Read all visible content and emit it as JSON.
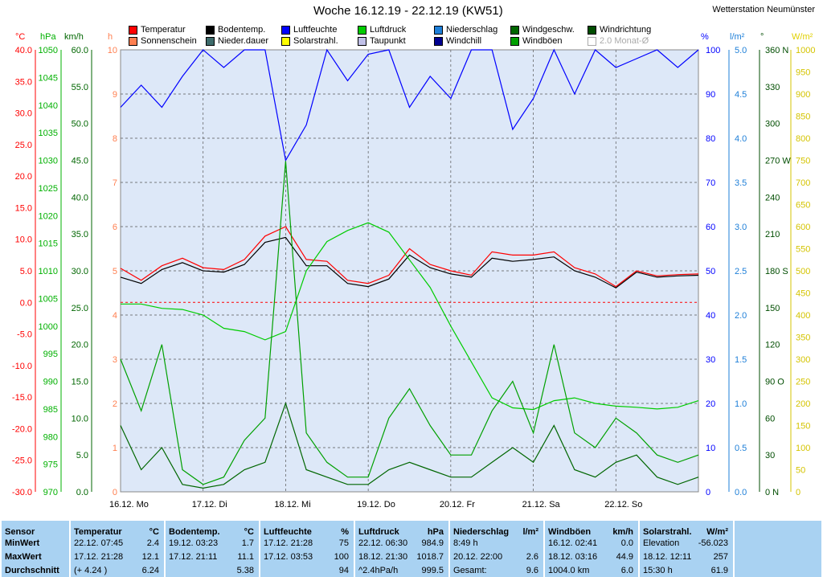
{
  "header": {
    "title": "Woche 16.12.19 - 22.12.19 (KW51)",
    "station": "Wetterstation Neumünster"
  },
  "legend": [
    {
      "label": "Temperatur",
      "color": "#ff0000"
    },
    {
      "label": "Bodentemp.",
      "color": "#000000"
    },
    {
      "label": "Luftfeuchte",
      "color": "#0000ff"
    },
    {
      "label": "Luftdruck",
      "color": "#00cc00"
    },
    {
      "label": "Niederschlag",
      "color": "#1e7fd8"
    },
    {
      "label": "Windgeschw.",
      "color": "#006600"
    },
    {
      "label": "Windrichtung",
      "color": "#004d00"
    },
    {
      "label": "Sonnenschein",
      "color": "#ff7f50"
    },
    {
      "label": "Nieder.dauer",
      "color": "#3d6b6b"
    },
    {
      "label": "Solarstrahl.",
      "color": "#ffff00"
    },
    {
      "label": "Taupunkt",
      "color": "#c0c0e8"
    },
    {
      "label": "Windchill",
      "color": "#000090"
    },
    {
      "label": "Windböen",
      "color": "#00a000"
    },
    {
      "label": "2.0 Monat-Ø",
      "color": "#ffffff"
    }
  ],
  "axis_units": {
    "celsius": "°C",
    "hpa": "hPa",
    "kmh": "km/h",
    "hours": "h",
    "percent": "%",
    "lm2": "l/m²",
    "deg": "°",
    "wm2": "W/m²"
  },
  "chart_data": {
    "type": "line",
    "title": "Woche 16.12.19 - 22.12.19 (KW51)",
    "x_labels": [
      "16.12.  Mo",
      "17.12.  Di",
      "18.12.  Mi",
      "19.12.  Do",
      "20.12.  Fr",
      "21.12.  Sa",
      "22.12.  So"
    ],
    "x_range_hours": [
      0,
      168
    ],
    "axes": {
      "celsius": {
        "range": [
          -30,
          40
        ],
        "ticks": [
          "40.0",
          "35.0",
          "30.0",
          "25.0",
          "20.0",
          "15.0",
          "10.0",
          "5.0",
          "0.0",
          "-5.0",
          "-10.0",
          "-15.0",
          "-20.0",
          "-25.0",
          "-30.0"
        ]
      },
      "hpa": {
        "range": [
          970,
          1050
        ],
        "ticks": [
          "1050",
          "1045",
          "1040",
          "1035",
          "1030",
          "1025",
          "1020",
          "1015",
          "1010",
          "1005",
          "1000",
          "995",
          "990",
          "985",
          "980",
          "975",
          "970"
        ]
      },
      "kmh": {
        "range": [
          0,
          60
        ],
        "ticks": [
          "60.0",
          "55.0",
          "50.0",
          "45.0",
          "40.0",
          "35.0",
          "30.0",
          "25.0",
          "20.0",
          "15.0",
          "10.0",
          "5.0",
          "0.0"
        ]
      },
      "hours": {
        "range": [
          0,
          10
        ],
        "ticks": [
          "10",
          "9",
          "8",
          "7",
          "6",
          "5",
          "4",
          "3",
          "2",
          "1",
          "0"
        ]
      },
      "percent": {
        "range": [
          0,
          100
        ],
        "ticks": [
          "100",
          "90",
          "80",
          "70",
          "60",
          "50",
          "40",
          "30",
          "20",
          "10",
          "0"
        ]
      },
      "lm2": {
        "range": [
          0,
          5
        ],
        "ticks": [
          "5.0",
          "4.5",
          "4.0",
          "3.5",
          "3.0",
          "2.5",
          "2.0",
          "1.5",
          "1.0",
          "0.5",
          "0.0"
        ]
      },
      "deg": {
        "range": [
          0,
          360
        ],
        "ticks": [
          "360 N",
          "330",
          "300",
          "270 W",
          "240",
          "210",
          "180 S",
          "150",
          "120",
          "90 O",
          "60",
          "30",
          "0 N"
        ]
      },
      "wm2": {
        "range": [
          0,
          1000
        ],
        "ticks": [
          "1000",
          "950",
          "900",
          "850",
          "800",
          "750",
          "700",
          "650",
          "600",
          "550",
          "500",
          "450",
          "400",
          "350",
          "300",
          "250",
          "200",
          "150",
          "100",
          "50",
          "0"
        ]
      }
    },
    "series": [
      {
        "name": "Temperatur",
        "unit": "°C",
        "color": "#ff0000",
        "x": [
          0,
          6,
          12,
          18,
          24,
          30,
          36,
          42,
          48,
          54,
          60,
          66,
          72,
          78,
          84,
          90,
          96,
          102,
          108,
          114,
          120,
          126,
          132,
          138,
          144,
          150,
          156,
          162,
          168
        ],
        "values": [
          5.4,
          3.5,
          5.8,
          7.0,
          5.5,
          5.2,
          6.8,
          10.5,
          12.0,
          6.8,
          6.5,
          3.5,
          3.0,
          4.3,
          8.5,
          6.0,
          5.0,
          4.3,
          8.0,
          7.5,
          7.5,
          8.0,
          5.5,
          4.5,
          2.5,
          5.0,
          4.2,
          4.4,
          4.5
        ]
      },
      {
        "name": "Bodentemp.",
        "unit": "°C",
        "color": "#000000",
        "x": [
          0,
          6,
          12,
          18,
          24,
          30,
          36,
          42,
          48,
          54,
          60,
          66,
          72,
          78,
          84,
          90,
          96,
          102,
          108,
          114,
          120,
          126,
          132,
          138,
          144,
          150,
          156,
          162,
          168
        ],
        "values": [
          4.0,
          3.0,
          5.2,
          6.3,
          5.0,
          4.8,
          6.0,
          9.5,
          10.3,
          5.8,
          5.8,
          3.0,
          2.5,
          3.7,
          7.5,
          5.5,
          4.5,
          4.0,
          7.0,
          6.5,
          6.8,
          7.2,
          5.0,
          4.0,
          2.3,
          4.8,
          4.0,
          4.2,
          4.3
        ]
      },
      {
        "name": "Luftdruck",
        "unit": "hPa",
        "color": "#00cc00",
        "x": [
          0,
          6,
          12,
          18,
          24,
          30,
          36,
          42,
          48,
          54,
          60,
          66,
          72,
          78,
          84,
          90,
          96,
          102,
          108,
          114,
          120,
          126,
          132,
          138,
          144,
          150,
          156,
          162,
          168
        ],
        "values": [
          1004.0,
          1004.0,
          1003.2,
          1003.0,
          1002.0,
          999.6,
          999.0,
          997.5,
          999.0,
          1010.0,
          1015.3,
          1017.3,
          1018.7,
          1017.0,
          1012.0,
          1007.0,
          1000.0,
          993.5,
          987.0,
          985.2,
          984.9,
          986.5,
          987.0,
          986.0,
          985.5,
          985.3,
          985.0,
          985.3,
          986.5
        ]
      },
      {
        "name": "Luftfeuchte",
        "unit": "%",
        "color": "#0000ff",
        "x": [
          0,
          6,
          12,
          18,
          24,
          30,
          36,
          42,
          48,
          54,
          60,
          66,
          72,
          78,
          84,
          90,
          96,
          102,
          108,
          114,
          120,
          126,
          132,
          138,
          144,
          150,
          156,
          162,
          168
        ],
        "values": [
          87,
          92,
          87,
          94,
          100,
          96,
          100,
          100,
          75,
          83,
          100,
          93,
          99,
          100,
          87,
          94,
          89,
          100,
          100,
          82,
          89,
          100,
          90,
          100,
          96,
          98,
          100,
          96,
          100
        ]
      },
      {
        "name": "Windgeschw.",
        "unit": "km/h",
        "color": "#006600",
        "x": [
          0,
          6,
          12,
          18,
          24,
          30,
          36,
          42,
          48,
          54,
          60,
          66,
          72,
          78,
          84,
          90,
          96,
          102,
          108,
          114,
          120,
          126,
          132,
          138,
          144,
          150,
          156,
          162,
          168
        ],
        "values": [
          9,
          3,
          6,
          1,
          0.5,
          1,
          3,
          4,
          12,
          3,
          2,
          1,
          1,
          3,
          4,
          3,
          2,
          2,
          4,
          6,
          4,
          9,
          3,
          2,
          4,
          5,
          2,
          1,
          2
        ]
      },
      {
        "name": "Windböen",
        "unit": "km/h",
        "color": "#00a000",
        "x": [
          0,
          6,
          12,
          18,
          24,
          30,
          36,
          42,
          48,
          54,
          60,
          66,
          72,
          78,
          84,
          90,
          96,
          102,
          108,
          114,
          120,
          126,
          132,
          138,
          144,
          150,
          156,
          162,
          168
        ],
        "values": [
          18,
          11,
          20,
          3,
          1,
          2,
          7,
          10,
          44.9,
          8,
          4,
          2,
          2,
          10,
          14,
          9,
          5,
          5,
          11,
          15,
          8,
          20,
          8,
          6,
          10,
          8,
          5,
          4,
          5
        ]
      }
    ],
    "stats": {
      "headers": [
        "Sensor",
        "Temperatur",
        "Bodentemp.",
        "Luftfeuchte",
        "Luftdruck",
        "Niederschlag",
        "Windböen",
        "Solarstrahl."
      ],
      "units": [
        "",
        "°C",
        "°C",
        "%",
        "hPa",
        "l/m²",
        "km/h",
        "W/m²"
      ],
      "row_labels": [
        "MinWert",
        "MaxWert",
        "Durchschnitt"
      ],
      "temperatur": [
        [
          "22.12.  07:45",
          "2.4"
        ],
        [
          "17.12.  21:28",
          "12.1"
        ],
        [
          "(+ 4.24 )",
          "6.24"
        ]
      ],
      "bodentemp": [
        [
          "19.12.  03:23",
          "1.7"
        ],
        [
          "17.12.  21:11",
          "11.1"
        ],
        [
          "",
          "5.38"
        ]
      ],
      "luftfeuchte": [
        [
          "17.12.  21:28",
          "75"
        ],
        [
          "17.12.  03:53",
          "100"
        ],
        [
          "",
          "94"
        ]
      ],
      "luftdruck": [
        [
          "22.12.  06:30",
          "984.9"
        ],
        [
          "18.12.  21:30",
          "1018.7"
        ],
        [
          "^2.4hPa/h",
          "999.5"
        ]
      ],
      "niederschlag": [
        [
          "8:49 h",
          ""
        ],
        [
          "20.12.  22:00",
          "2.6"
        ],
        [
          "Gesamt:",
          "9.6"
        ]
      ],
      "windboeen": [
        [
          "16.12.  02:41",
          "0.0"
        ],
        [
          "18.12.  03:16",
          "44.9"
        ],
        [
          "1004.0 km",
          "6.0"
        ]
      ],
      "solar": [
        [
          "Elevation",
          "-56.023"
        ],
        [
          "18.12.  12:11",
          "257"
        ],
        [
          "15:30 h",
          "61.9"
        ]
      ]
    }
  }
}
